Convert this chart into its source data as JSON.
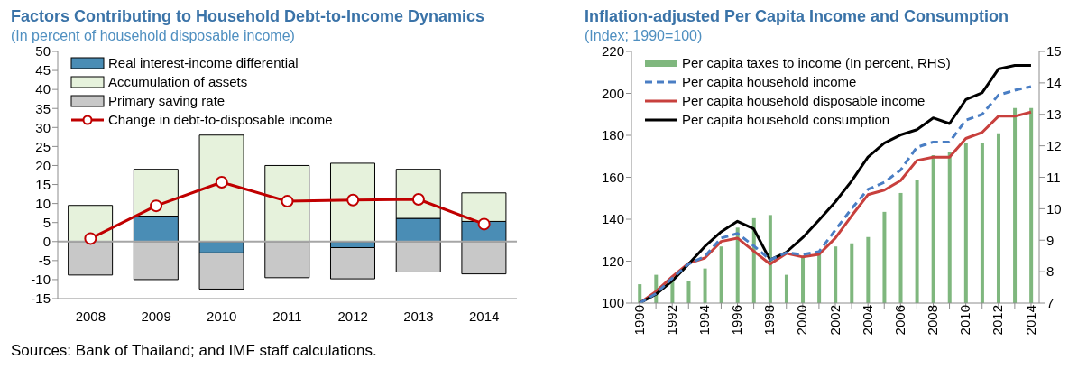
{
  "chart_data": [
    {
      "type": "bar",
      "title": "Factors Contributing to Household Debt-to-Income Dynamics",
      "subtitle": "(In percent of household disposable income)",
      "categories": [
        "2008",
        "2009",
        "2010",
        "2011",
        "2012",
        "2013",
        "2014"
      ],
      "stacked": true,
      "ylim": [
        -15,
        50
      ],
      "yticks": [
        -15,
        -10,
        -5,
        0,
        5,
        10,
        15,
        20,
        25,
        30,
        35,
        40,
        45,
        50
      ],
      "legend": "top left",
      "ref_lines": [
        {
          "axis": "y",
          "value": 0,
          "color": "#a6a6a6"
        }
      ],
      "annotations": [
        "Sources: Bank of Thailand; and IMF staff calculations."
      ],
      "series": [
        {
          "name": "Real interest-income differential",
          "color": "#4a8db5",
          "values": [
            0,
            6.7,
            -3,
            0,
            -1.6,
            6.1,
            5.3
          ]
        },
        {
          "name": "Accumulation of assets",
          "color": "#e6f2dc",
          "values": [
            9.5,
            12.3,
            28,
            20,
            20.6,
            12.9,
            7.5
          ]
        },
        {
          "name": "Primary saving rate",
          "color": "#c8c8c8",
          "values": [
            -8.8,
            -10,
            -9.5,
            -9.5,
            -8.2,
            -8,
            -8.5
          ]
        },
        {
          "name": "Change in debt-to-disposable income",
          "type": "line",
          "color": "#c00000",
          "marker": "circle",
          "values": [
            0.8,
            9.4,
            15.6,
            10.6,
            10.9,
            11.1,
            4.6
          ]
        }
      ]
    },
    {
      "type": "line",
      "title": "Inflation-adjusted Per Capita Income and Consumption",
      "subtitle": "(Index; 1990=100)",
      "categories": [
        "1990",
        null,
        "1992",
        null,
        "1994",
        null,
        "1996",
        null,
        "1998",
        null,
        "2000",
        null,
        "2002",
        null,
        "2004",
        null,
        "2006",
        null,
        "2008",
        null,
        "2010",
        null,
        "2012",
        null,
        "2014"
      ],
      "ylim": [
        100,
        220
      ],
      "yticks": [
        100,
        120,
        140,
        160,
        180,
        200,
        220
      ],
      "y2lim": [
        7,
        15
      ],
      "y2ticks": [
        7,
        8,
        9,
        10,
        11,
        12,
        13,
        14,
        15
      ],
      "legend": "top left",
      "series": [
        {
          "name": "Per capita taxes to income (In percent, RHS)",
          "type": "bar",
          "axis": "y2",
          "color": "#7fb77e",
          "values": [
            7.6,
            7.9,
            7.7,
            7.7,
            8.1,
            8.8,
            9.4,
            9.7,
            9.8,
            7.9,
            8.5,
            8.6,
            8.8,
            8.9,
            9.1,
            9.9,
            10.5,
            10.9,
            11.7,
            11.8,
            12.1,
            12.1,
            12.4,
            13.2,
            13.2
          ]
        },
        {
          "name": "Per capita household income",
          "color": "#4a7ec4",
          "line_style": "dashed",
          "values": [
            100,
            104.5,
            111.9,
            118.6,
            122.3,
            131,
            133.2,
            127.3,
            120.6,
            124,
            123.2,
            124.5,
            134.9,
            145,
            154.2,
            157.6,
            163.4,
            174.3,
            176.8,
            176.8,
            187.2,
            190,
            199.2,
            201.5,
            203.2
          ]
        },
        {
          "name": "Per capita household disposable income",
          "color": "#c8403d",
          "values": [
            100,
            105.5,
            112.6,
            119,
            121.5,
            129.4,
            131,
            124.8,
            118.6,
            123.7,
            122,
            123.2,
            131,
            141.6,
            151.7,
            153.9,
            158.4,
            168,
            169.6,
            169.6,
            178.5,
            181.4,
            189.1,
            189.1,
            191.1
          ]
        },
        {
          "name": "Per capita household consumption",
          "color": "#000000",
          "values": [
            100,
            104.2,
            110.6,
            118.6,
            127,
            134,
            139,
            135.4,
            120.6,
            124.3,
            131.2,
            139.6,
            148.3,
            158.2,
            169.6,
            176.3,
            180.2,
            182.7,
            188.3,
            185.6,
            197,
            200.3,
            211.6,
            213.3,
            213.3
          ]
        }
      ]
    }
  ]
}
